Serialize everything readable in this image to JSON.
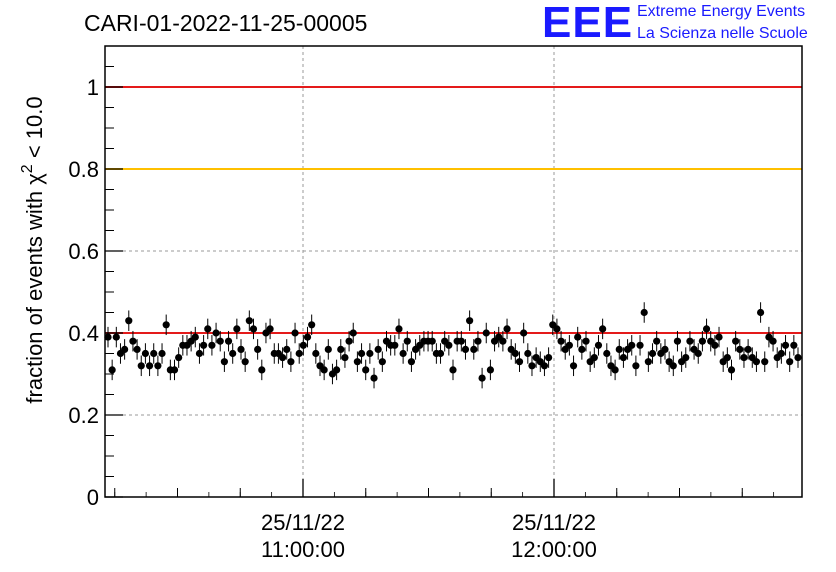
{
  "header": {
    "title": "CARI-01-2022-11-25-00005",
    "logo_mark": "EEE",
    "logo_line1": "Extreme Energy Events",
    "logo_line2": "La Scienza nelle Scuole"
  },
  "colors": {
    "reference_high": "#e41a1a",
    "reference_mid": "#ffc000",
    "reference_low": "#e41a1a",
    "markers": "#000000",
    "logo": "#1a1aff",
    "grid": "#9a9a9a"
  },
  "chart_data": {
    "type": "scatter",
    "title": "CARI-01-2022-11-25-00005",
    "ylabel_main": "fraction of events with χ",
    "ylabel_sup": "2",
    "ylabel_rest": " < 10.0",
    "xlabel": "",
    "ylim": [
      0,
      1.1
    ],
    "yticks": [
      "0",
      "0.2",
      "0.4",
      "0.6",
      "0.8",
      "1"
    ],
    "xticks": [
      {
        "line1": "25/11/22",
        "line2": "11:00:00"
      },
      {
        "line1": "25/11/22",
        "line2": "12:00:00"
      }
    ],
    "grid": true,
    "reference_lines": [
      1.0,
      0.8,
      0.4
    ],
    "error": 0.025,
    "y": [
      0.39,
      0.31,
      0.39,
      0.35,
      0.36,
      0.43,
      0.38,
      0.36,
      0.32,
      0.35,
      0.32,
      0.35,
      0.32,
      0.35,
      0.42,
      0.31,
      0.31,
      0.34,
      0.37,
      0.37,
      0.38,
      0.39,
      0.35,
      0.37,
      0.41,
      0.37,
      0.4,
      0.38,
      0.33,
      0.38,
      0.35,
      0.41,
      0.36,
      0.33,
      0.43,
      0.41,
      0.36,
      0.31,
      0.4,
      0.41,
      0.35,
      0.35,
      0.34,
      0.36,
      0.33,
      0.4,
      0.35,
      0.37,
      0.39,
      0.42,
      0.35,
      0.32,
      0.31,
      0.36,
      0.3,
      0.31,
      0.36,
      0.34,
      0.38,
      0.4,
      0.33,
      0.35,
      0.31,
      0.35,
      0.29,
      0.36,
      0.33,
      0.38,
      0.37,
      0.37,
      0.41,
      0.35,
      0.38,
      0.33,
      0.36,
      0.37,
      0.38,
      0.38,
      0.38,
      0.35,
      0.35,
      0.38,
      0.37,
      0.31,
      0.38,
      0.38,
      0.36,
      0.43,
      0.36,
      0.38,
      0.29,
      0.4,
      0.31,
      0.38,
      0.39,
      0.38,
      0.41,
      0.36,
      0.35,
      0.33,
      0.4,
      0.35,
      0.32,
      0.34,
      0.33,
      0.32,
      0.34,
      0.42,
      0.41,
      0.38,
      0.36,
      0.37,
      0.32,
      0.39,
      0.36,
      0.38,
      0.33,
      0.34,
      0.37,
      0.41,
      0.35,
      0.32,
      0.31,
      0.36,
      0.34,
      0.36,
      0.37,
      0.32,
      0.37,
      0.45,
      0.33,
      0.35,
      0.38,
      0.35,
      0.36,
      0.33,
      0.32,
      0.38,
      0.33,
      0.34,
      0.38,
      0.36,
      0.35,
      0.38,
      0.41,
      0.38,
      0.37,
      0.39,
      0.33,
      0.34,
      0.31,
      0.38,
      0.36,
      0.34,
      0.36,
      0.34,
      0.33,
      0.45,
      0.33,
      0.39,
      0.38,
      0.34,
      0.35,
      0.37,
      0.33,
      0.37,
      0.34
    ]
  }
}
